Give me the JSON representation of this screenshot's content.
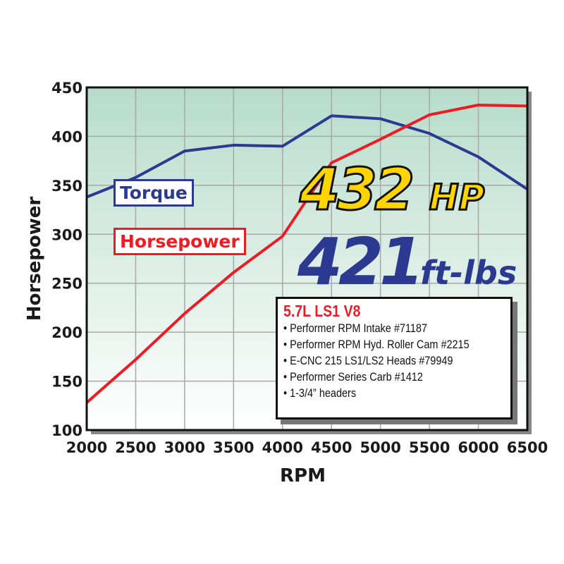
{
  "chart_data": {
    "type": "line",
    "xlabel": "RPM",
    "ylabel": "Horsepower",
    "xlim": [
      2000,
      6500
    ],
    "ylim": [
      100,
      450
    ],
    "x": [
      2000,
      2500,
      3000,
      3500,
      4000,
      4500,
      5000,
      5500,
      6000,
      6500
    ],
    "xticks": [
      "2000",
      "2500",
      "3000",
      "3500",
      "4000",
      "4500",
      "5000",
      "5500",
      "6000",
      "6500"
    ],
    "yticks": [
      "100",
      "150",
      "200",
      "250",
      "300",
      "350",
      "400",
      "450"
    ],
    "grid": true,
    "series": [
      {
        "name": "Torque",
        "color": "#2b3990",
        "values": [
          338,
          358,
          385,
          391,
          390,
          421,
          418,
          403,
          379,
          346
        ]
      },
      {
        "name": "Horsepower",
        "color": "#ed1c24",
        "values": [
          128,
          172,
          219,
          261,
          298,
          373,
          397,
          422,
          432,
          431
        ]
      }
    ],
    "background_gradient": [
      "#b7dccb",
      "#ffffff"
    ]
  },
  "callouts": {
    "hp_value": "432",
    "hp_unit": "HP",
    "torque_value": "421",
    "torque_unit": "ft-lbs"
  },
  "spec_box": {
    "title": "5.7L LS1 V8",
    "items": [
      "• Performer RPM Intake #71187",
      "• Performer RPM Hyd. Roller Cam #2215",
      "• E-CNC 215 LS1/LS2 Heads #79949",
      "• Performer Series Carb #1412",
      "•  1-3/4” headers"
    ]
  }
}
